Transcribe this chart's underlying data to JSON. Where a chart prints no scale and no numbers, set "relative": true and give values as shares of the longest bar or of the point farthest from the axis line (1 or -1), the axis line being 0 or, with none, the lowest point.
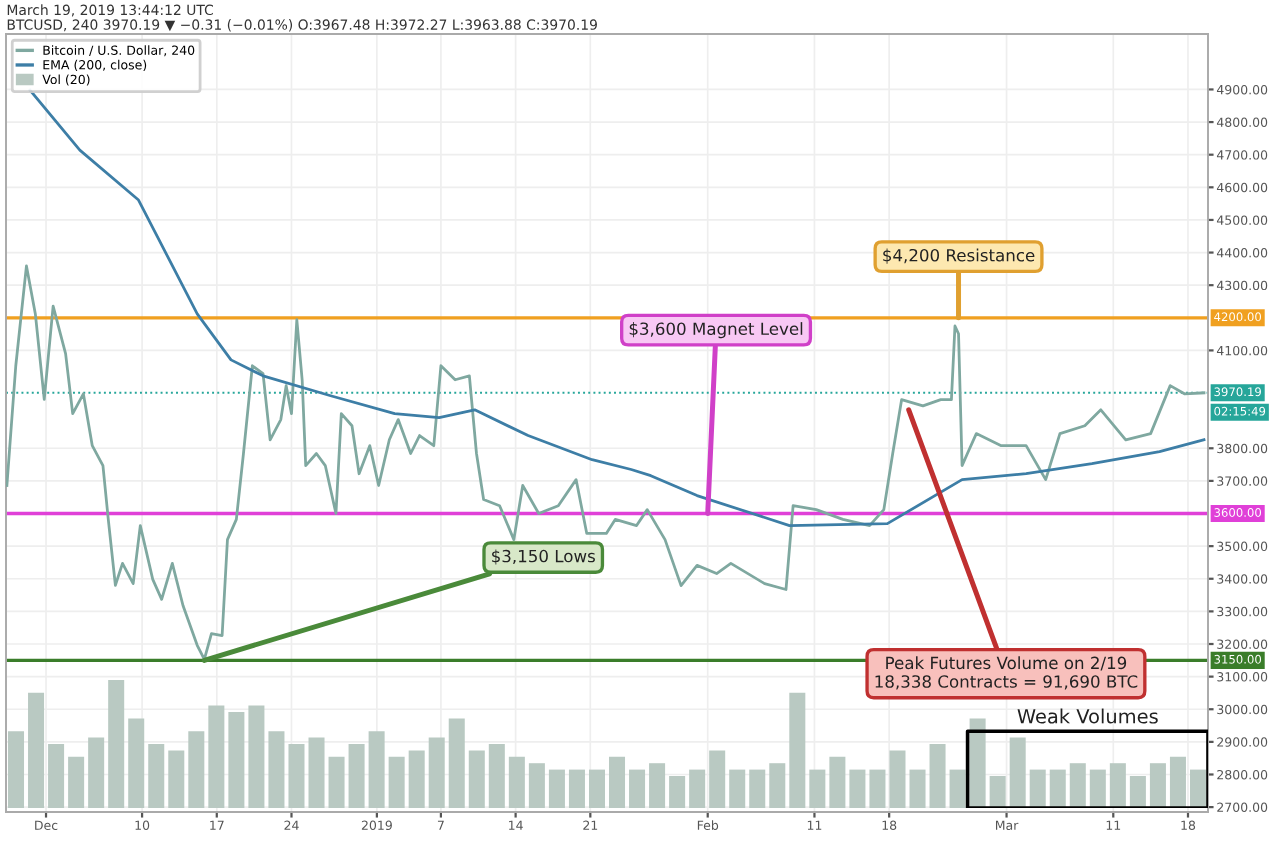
{
  "chart_data": [
    {
      "type": "line",
      "title": "March 19, 2019 13:44:12 UTC",
      "subtitle": "BTCUSD, 240 3970.19 ▼ −0.31 (−0.01%) O:3967.48 H:3972.27 L:3963.88 C:3970.19",
      "series": [
        {
          "name": "Bitcoin / U.S. Dollar, 240",
          "color": "#7fa8a0",
          "x": [
            "2018-11-27T08:00",
            "2018-11-28T04:00",
            "2018-11-29T04:00",
            "2018-11-30T00:00",
            "2018-11-30T20:00",
            "2018-12-01T16:00",
            "2018-12-02T20:00",
            "2018-12-03T12:00",
            "2018-12-04T12:00",
            "2018-12-05T08:00",
            "2018-12-06T08:00",
            "2018-12-06T20:00",
            "2018-12-07T12:00",
            "2018-12-08T04:00",
            "2018-12-09T04:00",
            "2018-12-09T20:00",
            "2018-12-11T00:00",
            "2018-12-11T20:00",
            "2018-12-12T20:00",
            "2018-12-13T20:00",
            "2018-12-15T04:00",
            "2018-12-15T20:00",
            "2018-12-16T12:00",
            "2018-12-17T12:00",
            "2018-12-18T00:00",
            "2018-12-18T20:00",
            "2018-12-19T12:00",
            "2018-12-20T08:00",
            "2018-12-21T08:00",
            "2018-12-22T00:00",
            "2018-12-23T00:00",
            "2018-12-23T12:00",
            "2018-12-24T00:00",
            "2018-12-24T12:00",
            "2018-12-25T00:00",
            "2018-12-25T08:00",
            "2018-12-26T08:00",
            "2018-12-27T04:00",
            "2018-12-28T04:00",
            "2018-12-28T16:00",
            "2018-12-29T16:00",
            "2018-12-30T08:00",
            "2018-12-31T08:00",
            "2019-01-01T04:00",
            "2019-01-02T04:00",
            "2019-01-03T00:00",
            "2019-01-04T04:00",
            "2019-01-05T00:00",
            "2019-01-06T08:00",
            "2019-01-07T00:00",
            "2019-01-08T08:00",
            "2019-01-09T16:00",
            "2019-01-10T08:00",
            "2019-01-11T00:00",
            "2019-01-12T12:00",
            "2019-01-13T20:00",
            "2019-01-14T16:00",
            "2019-01-16T04:00",
            "2019-01-18T00:00",
            "2019-01-19T16:00",
            "2019-01-20T16:00",
            "2019-01-22T12:00",
            "2019-01-23T08:00",
            "2019-01-25T08:00",
            "2019-01-26T08:00",
            "2019-01-28T00:00",
            "2019-01-29T12:00",
            "2019-01-31T00:00",
            "2019-02-01T20:00",
            "2019-02-03T04:00",
            "2019-02-06T08:00",
            "2019-02-08T08:00",
            "2019-02-09T00:00",
            "2019-02-11T04:00",
            "2019-02-13T16:00",
            "2019-02-16T04:00",
            "2019-02-17T12:00",
            "2019-02-18T08:00",
            "2019-02-19T04:00",
            "2019-02-21T04:00",
            "2019-02-22T20:00",
            "2019-02-23T20:00",
            "2019-02-24T04:00",
            "2019-02-24T12:00",
            "2019-02-24T20:00",
            "2019-02-25T08:00",
            "2019-02-26T04:00",
            "2019-02-28T12:00",
            "2019-03-02T20:00",
            "2019-03-04T16:00",
            "2019-03-06T00:00",
            "2019-03-08T08:00",
            "2019-03-09T20:00",
            "2019-03-12T04:00",
            "2019-03-14T12:00",
            "2019-03-16T08:00",
            "2019-03-17T16:00",
            "2019-03-19T12:00"
          ],
          "values": [
            3686,
            4053,
            4359,
            4212,
            3950,
            4236,
            4090,
            3906,
            3967,
            3808,
            3747,
            3582,
            3380,
            3447,
            3385,
            3563,
            3398,
            3337,
            3447,
            3318,
            3196,
            3153,
            3232,
            3226,
            3520,
            3582,
            3784,
            4053,
            4029,
            3826,
            3888,
            3992,
            3906,
            4194,
            4010,
            3747,
            3784,
            3747,
            3600,
            3906,
            3869,
            3722,
            3808,
            3686,
            3826,
            3888,
            3784,
            3839,
            3808,
            4053,
            4010,
            4022,
            3784,
            3643,
            3624,
            3520,
            3686,
            3600,
            3624,
            3704,
            3539,
            3539,
            3582,
            3563,
            3612,
            3520,
            3379,
            3441,
            3416,
            3447,
            3385,
            3367,
            3624,
            3612,
            3582,
            3563,
            3612,
            3784,
            3949,
            3930,
            3949,
            3949,
            4175,
            4151,
            3747,
            3784,
            3845,
            3808,
            3808,
            3704,
            3845,
            3869,
            3918,
            3826,
            3845,
            3992,
            3967,
            3970
          ]
        },
        {
          "name": "EMA (200, close)",
          "color": "#3d7ea6",
          "x": [
            "2018-11-29T12:00",
            "2018-12-04T04:00",
            "2018-12-09T16:00",
            "2018-12-15T04:00",
            "2018-12-18T08:00",
            "2018-12-21T08:00",
            "2018-12-27T16:00",
            "2019-01-02T16:00",
            "2019-01-06T20:00",
            "2019-01-10T04:00",
            "2019-01-15T04:00",
            "2019-01-21T04:00",
            "2019-01-24T20:00",
            "2019-01-26T16:00",
            "2019-01-31T00:00",
            "2019-02-08T16:00",
            "2019-02-17T20:00",
            "2019-02-24T20:00",
            "2019-03-02T20:00",
            "2019-03-09T00:00",
            "2019-03-15T08:00",
            "2019-03-19T12:00"
          ],
          "values": [
            4898,
            4714,
            4561,
            4212,
            4071,
            4022,
            3961,
            3906,
            3894,
            3918,
            3839,
            3765,
            3735,
            3716,
            3655,
            3563,
            3569,
            3704,
            3722,
            3753,
            3790,
            3826
          ]
        }
      ],
      "xlim": [
        "2018-11-27T06:00",
        "2019-03-19T21:00"
      ],
      "xticks": [
        {
          "value": "2018-12-01",
          "label": "Dec"
        },
        {
          "value": "2018-12-10",
          "label": "10"
        },
        {
          "value": "2018-12-17",
          "label": "17"
        },
        {
          "value": "2018-12-24",
          "label": "24"
        },
        {
          "value": "2019-01-01",
          "label": "2019"
        },
        {
          "value": "2019-01-07",
          "label": "7"
        },
        {
          "value": "2019-01-14",
          "label": "14"
        },
        {
          "value": "2019-01-21",
          "label": "21"
        },
        {
          "value": "2019-02-01",
          "label": "Feb"
        },
        {
          "value": "2019-02-11",
          "label": "11"
        },
        {
          "value": "2019-02-18",
          "label": "18"
        },
        {
          "value": "2019-03-01",
          "label": "Mar"
        },
        {
          "value": "2019-03-11",
          "label": "11"
        },
        {
          "value": "2019-03-18",
          "label": "18"
        }
      ],
      "ylim": [
        2685,
        5070
      ],
      "yticks": [
        {
          "value": 2700,
          "label": "2700.00"
        },
        {
          "value": 2800,
          "label": "2800.00"
        },
        {
          "value": 2900,
          "label": "2900.00"
        },
        {
          "value": 3000,
          "label": "3000.00"
        },
        {
          "value": 3100,
          "label": "3100.00"
        },
        {
          "value": 3200,
          "label": "3200.00"
        },
        {
          "value": 3300,
          "label": "3300.00"
        },
        {
          "value": 3400,
          "label": "3400.00"
        },
        {
          "value": 3500,
          "label": "3500.00"
        },
        {
          "value": 3700,
          "label": "3700.00"
        },
        {
          "value": 3800,
          "label": "3800.00"
        },
        {
          "value": 4100,
          "label": "4100.00"
        },
        {
          "value": 4300,
          "label": "4300.00"
        },
        {
          "value": 4400,
          "label": "4400.00"
        },
        {
          "value": 4500,
          "label": "4500.00"
        },
        {
          "value": 4600,
          "label": "4600.00"
        },
        {
          "value": 4700,
          "label": "4700.00"
        },
        {
          "value": 4800,
          "label": "4800.00"
        },
        {
          "value": 4900,
          "label": "4900.00"
        }
      ],
      "ref_lines": [
        {
          "axis": "y",
          "value": 4200,
          "label": "4200.00",
          "color": "#f0a020",
          "line_style": "solid"
        },
        {
          "axis": "y",
          "value": 3600,
          "label": "3600.00",
          "color": "#e040d8",
          "line_style": "solid"
        },
        {
          "axis": "y",
          "value": 3150,
          "label": "3150.00",
          "color": "#3a7d2a",
          "line_style": "solid"
        },
        {
          "axis": "y",
          "value": 3970.19,
          "label": "3970.19",
          "color": "#26a69a",
          "line_style": "dotted"
        }
      ],
      "annotations": [
        {
          "text": "$4,200 Resistance",
          "x": "2019-02-24T12:00",
          "y": 4200
        },
        {
          "text": "$3,600 Magnet Level",
          "x": "2019-02-01T00:00",
          "y": 3600
        },
        {
          "text": "$3,150 Lows",
          "x": "2018-12-15T20:00",
          "y": 3150
        },
        {
          "text": "Peak Futures Volume on 2/19\n18,338 Contracts = 91,690 BTC",
          "x": "2019-02-19T20:00",
          "y": 3918
        },
        "02:15:49"
      ],
      "grid": true,
      "legend": "top left",
      "line_style": "solid",
      "marker": "none"
    },
    {
      "type": "bar",
      "relative": true,
      "categories": [
        null,
        null,
        null,
        null,
        null,
        null,
        null,
        null,
        null,
        null,
        null,
        null,
        null,
        null,
        null,
        null,
        null,
        null,
        null,
        null,
        null,
        null,
        null,
        null,
        null,
        null,
        null,
        null,
        null,
        null,
        null,
        null,
        null,
        null,
        null,
        null,
        null,
        null,
        null,
        null,
        null,
        null,
        null,
        null,
        null,
        null,
        null,
        null,
        null,
        null,
        null,
        null,
        null,
        null,
        null,
        null,
        null,
        null,
        null,
        null
      ],
      "series": [
        {
          "name": "Vol (20)",
          "color": "#b9c9c2",
          "values": [
            0.6,
            0.9,
            0.5,
            0.4,
            0.55,
            1.0,
            0.7,
            0.5,
            0.45,
            0.6,
            0.8,
            0.75,
            0.8,
            0.6,
            0.5,
            0.55,
            0.4,
            0.5,
            0.6,
            0.4,
            0.45,
            0.55,
            0.7,
            0.45,
            0.5,
            0.4,
            0.35,
            0.3,
            0.3,
            0.3,
            0.4,
            0.3,
            0.35,
            0.25,
            0.3,
            0.45,
            0.3,
            0.3,
            0.35,
            0.9,
            0.3,
            0.4,
            0.3,
            0.3,
            0.45,
            0.3,
            0.5,
            0.3,
            0.7,
            0.25,
            0.55,
            0.3,
            0.3,
            0.35,
            0.3,
            0.35,
            0.25,
            0.35,
            0.4,
            0.3
          ]
        }
      ],
      "annotations": [
        "Weak Volumes"
      ]
    }
  ]
}
